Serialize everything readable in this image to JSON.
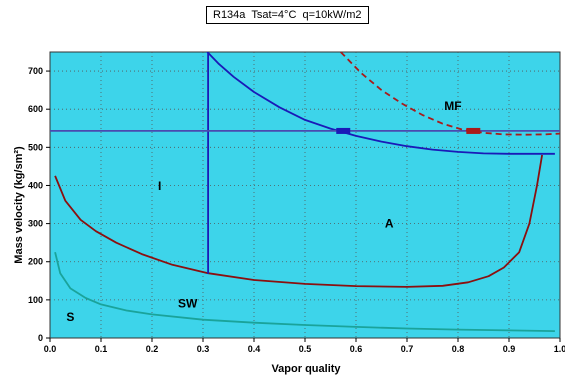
{
  "chart_data": {
    "type": "line",
    "title": "R134a  Tsat=4°C  q=10kW/m2",
    "xlabel": "Vapor quality",
    "ylabel": "Mass velocity (kg/sm²)",
    "xlim": [
      0.0,
      1.0
    ],
    "ylim": [
      0,
      750
    ],
    "xticks": [
      "0.0",
      "0.1",
      "0.2",
      "0.3",
      "0.4",
      "0.5",
      "0.6",
      "0.7",
      "0.8",
      "0.9",
      "1.0"
    ],
    "yticks": [
      "0",
      "100",
      "200",
      "300",
      "400",
      "500",
      "600",
      "700"
    ],
    "grid": true,
    "background": "#3dd4ea",
    "series": [
      {
        "color": "#8b0f0f",
        "dash": false,
        "x": [
          0.01,
          0.03,
          0.06,
          0.09,
          0.13,
          0.18,
          0.24,
          0.31,
          0.4,
          0.5,
          0.6,
          0.7,
          0.77,
          0.82,
          0.86,
          0.89,
          0.92,
          0.94,
          0.955,
          0.965
        ],
        "y": [
          425,
          360,
          310,
          280,
          250,
          220,
          192,
          170,
          152,
          142,
          136,
          134,
          137,
          146,
          162,
          185,
          225,
          300,
          400,
          480
        ]
      },
      {
        "color": "#1aa39a",
        "dash": false,
        "x": [
          0.01,
          0.02,
          0.04,
          0.07,
          0.1,
          0.15,
          0.2,
          0.3,
          0.4,
          0.5,
          0.6,
          0.7,
          0.8,
          0.9,
          0.99
        ],
        "y": [
          225,
          170,
          130,
          105,
          88,
          72,
          62,
          48,
          40,
          34,
          29,
          25,
          22,
          20,
          18
        ]
      },
      {
        "color": "#1a1ab8",
        "dash": false,
        "x": [
          0.305,
          0.33,
          0.36,
          0.4,
          0.45,
          0.5,
          0.55,
          0.6,
          0.65,
          0.7,
          0.75,
          0.8,
          0.85,
          0.9,
          0.95,
          0.99
        ],
        "y": [
          755,
          720,
          685,
          645,
          605,
          572,
          549,
          530,
          515,
          503,
          494,
          488,
          484,
          483,
          483,
          483
        ]
      },
      {
        "color": "#1a1ab8",
        "dash": false,
        "x": [
          0.31,
          0.31
        ],
        "y": [
          168,
          752
        ]
      },
      {
        "color": "#4a4ab0",
        "dash": false,
        "x": [
          0.0,
          1.0
        ],
        "y": [
          543,
          543
        ]
      },
      {
        "color": "#aa1a1a",
        "dash": true,
        "x": [
          0.57,
          0.61,
          0.65,
          0.69,
          0.73,
          0.77,
          0.81,
          0.85,
          0.89,
          0.93,
          0.97,
          1.0
        ],
        "y": [
          750,
          695,
          650,
          615,
          585,
          562,
          546,
          538,
          534,
          533,
          534,
          536
        ]
      }
    ],
    "markers": [
      {
        "x": 0.575,
        "y": 543,
        "color": "#1a1ab8"
      },
      {
        "x": 0.83,
        "y": 543,
        "color": "#aa1a1a"
      }
    ],
    "annotations": [
      {
        "text": "MF",
        "x": 0.79,
        "y": 598
      },
      {
        "text": "I",
        "x": 0.215,
        "y": 388
      },
      {
        "text": "A",
        "x": 0.665,
        "y": 290
      },
      {
        "text": "SW",
        "x": 0.27,
        "y": 80
      },
      {
        "text": "S",
        "x": 0.04,
        "y": 45
      }
    ]
  }
}
